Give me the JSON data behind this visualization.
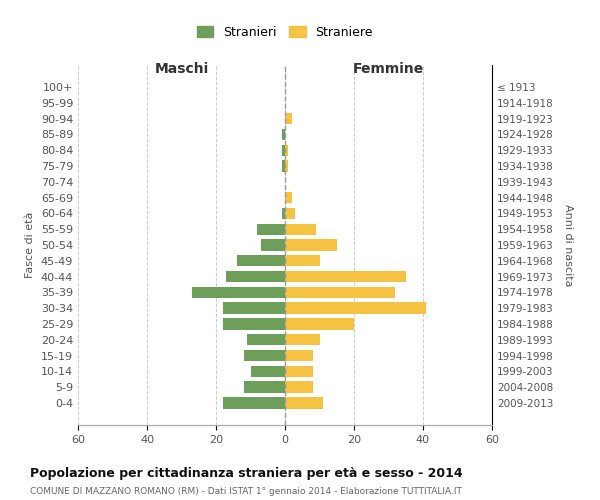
{
  "age_groups": [
    "0-4",
    "5-9",
    "10-14",
    "15-19",
    "20-24",
    "25-29",
    "30-34",
    "35-39",
    "40-44",
    "45-49",
    "50-54",
    "55-59",
    "60-64",
    "65-69",
    "70-74",
    "75-79",
    "80-84",
    "85-89",
    "90-94",
    "95-99",
    "100+"
  ],
  "birth_years": [
    "2009-2013",
    "2004-2008",
    "1999-2003",
    "1994-1998",
    "1989-1993",
    "1984-1988",
    "1979-1983",
    "1974-1978",
    "1969-1973",
    "1964-1968",
    "1959-1963",
    "1954-1958",
    "1949-1953",
    "1944-1948",
    "1939-1943",
    "1934-1938",
    "1929-1933",
    "1924-1928",
    "1919-1923",
    "1914-1918",
    "≤ 1913"
  ],
  "maschi": [
    18,
    12,
    10,
    12,
    11,
    18,
    18,
    27,
    17,
    14,
    7,
    8,
    1,
    0,
    0,
    1,
    1,
    1,
    0,
    0,
    0
  ],
  "femmine": [
    11,
    8,
    8,
    8,
    10,
    20,
    41,
    32,
    35,
    10,
    15,
    9,
    3,
    2,
    0,
    1,
    1,
    0,
    2,
    0,
    0
  ],
  "maschi_color": "#6d9e5a",
  "femmine_color": "#f5c242",
  "background_color": "#ffffff",
  "grid_color": "#cccccc",
  "title": "Popolazione per cittadinanza straniera per età e sesso - 2014",
  "subtitle": "COMUNE DI MAZZANO ROMANO (RM) - Dati ISTAT 1° gennaio 2014 - Elaborazione TUTTITALIA.IT",
  "ylabel_left": "Fasce di età",
  "ylabel_right": "Anni di nascita",
  "xlabel_left": "Maschi",
  "xlabel_right": "Femmine",
  "legend_maschi": "Stranieri",
  "legend_femmine": "Straniere",
  "xlim": 60,
  "bar_height": 0.72
}
